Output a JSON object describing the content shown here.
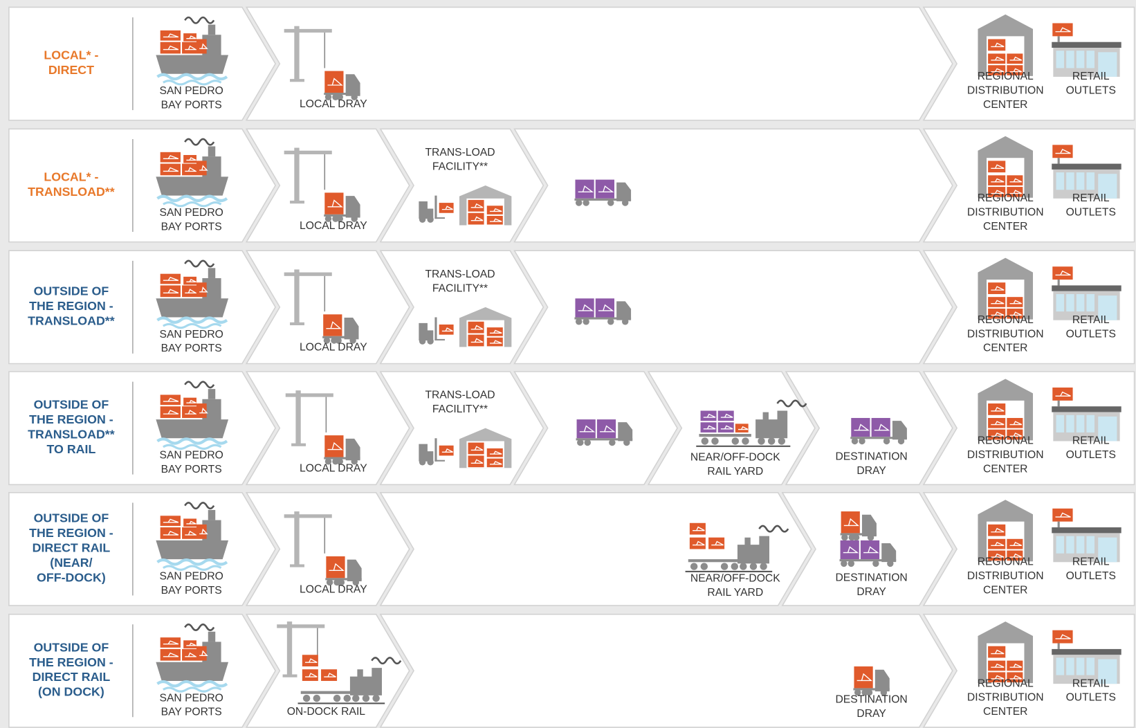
{
  "rows": [
    {
      "label": [
        "LOCAL* -",
        "DIRECT"
      ],
      "steps": [
        {
          "label": [
            "SAN PEDRO",
            "BAY PORTS"
          ]
        },
        {
          "label": [
            "LOCAL DRAY"
          ]
        },
        {
          "label": [
            "REGIONAL",
            "DISTRIBUTION",
            "CENTER"
          ]
        },
        {
          "label": [
            "RETAIL",
            "OUTLETS"
          ]
        }
      ]
    },
    {
      "label": [
        "LOCAL* -",
        "TRANSLOAD**"
      ],
      "steps": [
        {
          "label": [
            "SAN PEDRO",
            "BAY PORTS"
          ]
        },
        {
          "label": [
            "LOCAL DRAY"
          ]
        },
        {
          "label": [
            "TRANS-LOAD",
            "FACILITY**"
          ]
        },
        {
          "label": [
            "REGIONAL",
            "DISTRIBUTION",
            "CENTER"
          ]
        },
        {
          "label": [
            "RETAIL",
            "OUTLETS"
          ]
        }
      ]
    },
    {
      "label": [
        "OUTSIDE OF",
        "THE REGION -",
        "TRANSLOAD**"
      ],
      "steps": [
        {
          "label": [
            "SAN PEDRO",
            "BAY PORTS"
          ]
        },
        {
          "label": [
            "LOCAL DRAY"
          ]
        },
        {
          "label": [
            "TRANS-LOAD",
            "FACILITY**"
          ]
        },
        {
          "label": [
            "REGIONAL",
            "DISTRIBUTION",
            "CENTER"
          ]
        },
        {
          "label": [
            "RETAIL",
            "OUTLETS"
          ]
        }
      ]
    },
    {
      "label": [
        "OUTSIDE OF",
        "THE REGION -",
        "TRANSLOAD**",
        "TO RAIL"
      ],
      "steps": [
        {
          "label": [
            "SAN PEDRO",
            "BAY PORTS"
          ]
        },
        {
          "label": [
            "LOCAL DRAY"
          ]
        },
        {
          "label": [
            "TRANS-LOAD",
            "FACILITY**"
          ]
        },
        {
          "label": [
            "NEAR/OFF-DOCK",
            "RAIL YARD"
          ]
        },
        {
          "label": [
            "DESTINATION",
            "DRAY"
          ]
        },
        {
          "label": [
            "REGIONAL",
            "DISTRIBUTION",
            "CENTER"
          ]
        },
        {
          "label": [
            "RETAIL",
            "OUTLETS"
          ]
        }
      ]
    },
    {
      "label": [
        "OUTSIDE OF",
        "THE REGION -",
        "DIRECT RAIL",
        "(NEAR/",
        "OFF-DOCK)"
      ],
      "steps": [
        {
          "label": [
            "SAN PEDRO",
            "BAY PORTS"
          ]
        },
        {
          "label": [
            "LOCAL DRAY"
          ]
        },
        {
          "label": [
            "NEAR/OFF-DOCK",
            "RAIL YARD"
          ]
        },
        {
          "label": [
            "DESTINATION",
            "DRAY"
          ]
        },
        {
          "label": [
            "REGIONAL",
            "DISTRIBUTION",
            "CENTER"
          ]
        },
        {
          "label": [
            "RETAIL",
            "OUTLETS"
          ]
        }
      ]
    },
    {
      "label": [
        "OUTSIDE OF",
        "THE REGION -",
        "DIRECT RAIL",
        "(ON DOCK)"
      ],
      "steps": [
        {
          "label": [
            "SAN PEDRO",
            "BAY PORTS"
          ]
        },
        {
          "label": [
            "ON-DOCK RAIL"
          ]
        },
        {
          "label": [
            "DESTINATION",
            "DRAY"
          ]
        },
        {
          "label": [
            "REGIONAL",
            "DISTRIBUTION",
            "CENTER"
          ]
        },
        {
          "label": [
            "RETAIL",
            "OUTLETS"
          ]
        }
      ]
    }
  ]
}
